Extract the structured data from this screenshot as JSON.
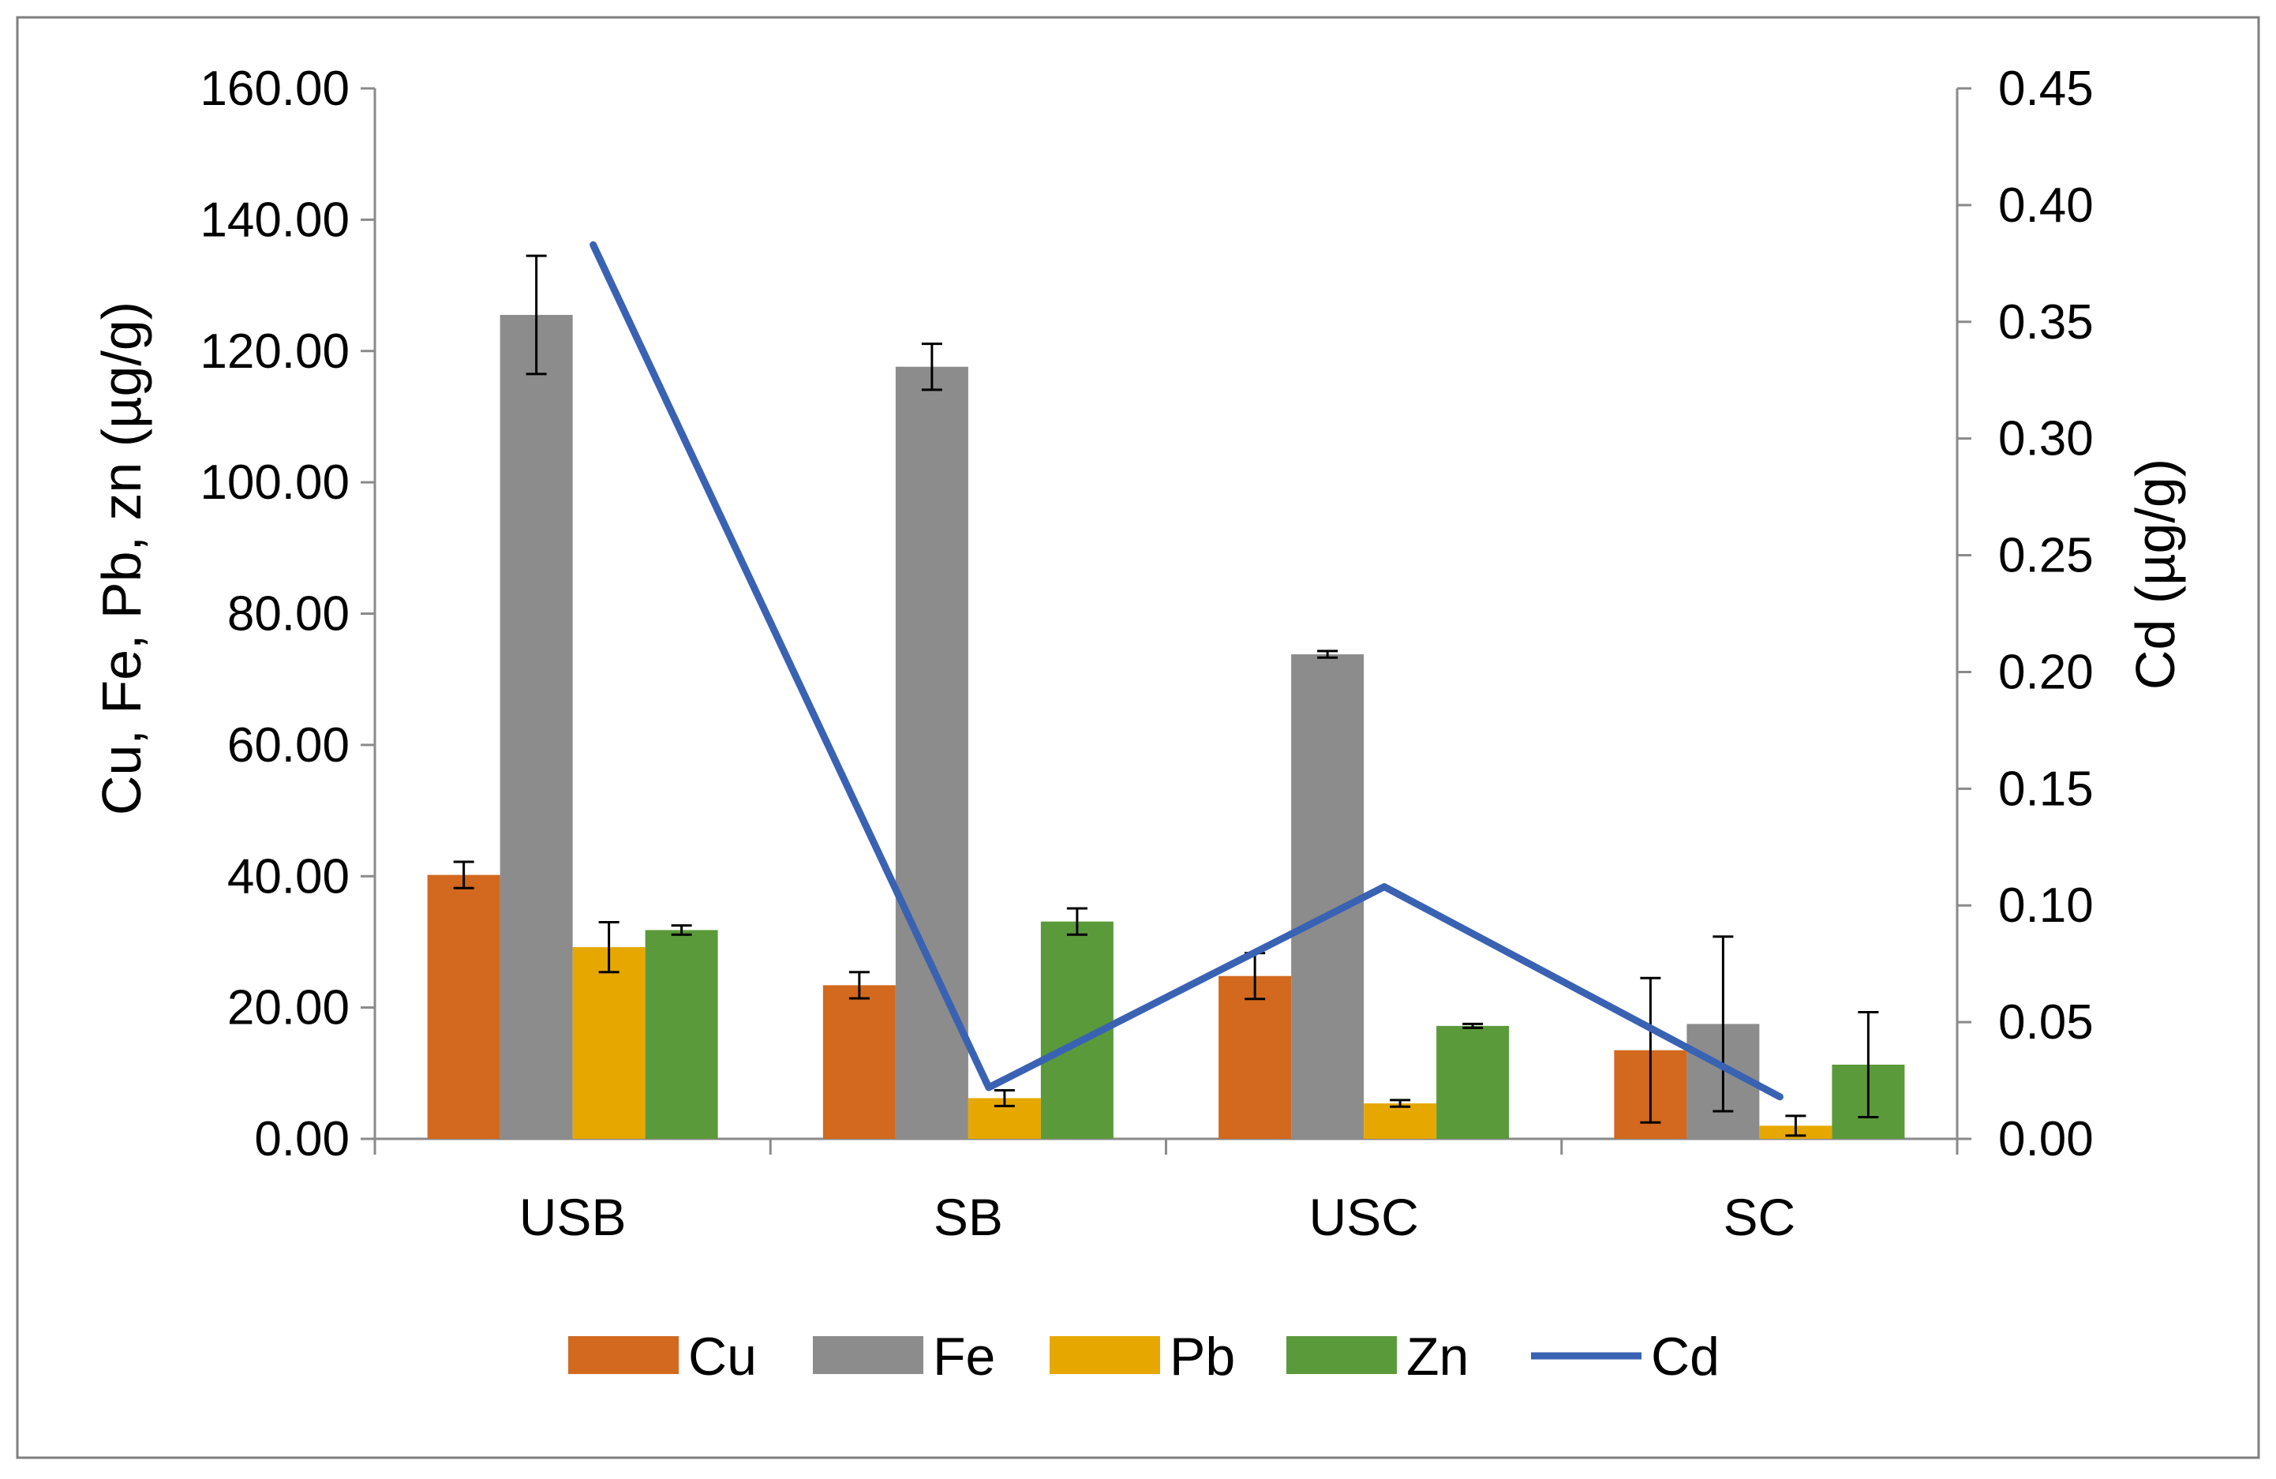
{
  "chart_data": {
    "type": "bar",
    "categories": [
      "USB",
      "SB",
      "USC",
      "SC"
    ],
    "series": [
      {
        "name": "Cu",
        "axis": "left",
        "kind": "bar",
        "color": "#d2691e",
        "values": [
          40.2,
          23.4,
          24.8,
          13.5
        ],
        "errors": [
          2.0,
          2.0,
          3.5,
          11.0
        ]
      },
      {
        "name": "Fe",
        "axis": "left",
        "kind": "bar",
        "color": "#8c8c8c",
        "values": [
          125.5,
          117.6,
          73.8,
          17.5
        ],
        "errors": [
          9.0,
          3.5,
          0.5,
          13.3
        ]
      },
      {
        "name": "Pb",
        "axis": "left",
        "kind": "bar",
        "color": "#e6a800",
        "values": [
          29.2,
          6.2,
          5.4,
          2.0
        ],
        "errors": [
          3.8,
          1.2,
          0.5,
          1.5
        ]
      },
      {
        "name": "Zn",
        "axis": "left",
        "kind": "bar",
        "color": "#5b9a3a",
        "values": [
          31.8,
          33.1,
          17.2,
          11.3
        ],
        "errors": [
          0.7,
          2.0,
          0.3,
          8.0
        ]
      },
      {
        "name": "Cd",
        "axis": "right",
        "kind": "line",
        "color": "#3a62b3",
        "values": [
          0.383,
          0.022,
          0.108,
          0.018
        ]
      }
    ],
    "ylabel_left": "Cu, Fe, Pb, zn (µg/g)",
    "ylabel_right": "Cd (µg/g)",
    "ylim_left": [
      0,
      160
    ],
    "ylim_right": [
      0,
      0.45
    ],
    "yticks_left": [
      "0.00",
      "20.00",
      "40.00",
      "60.00",
      "80.00",
      "100.00",
      "120.00",
      "140.00",
      "160.00"
    ],
    "yticks_right": [
      "0.00",
      "0.05",
      "0.10",
      "0.15",
      "0.20",
      "0.25",
      "0.30",
      "0.35",
      "0.40",
      "0.45"
    ],
    "legend": {
      "position": "bottom",
      "entries": [
        "Cu",
        "Fe",
        "Pb",
        "Zn",
        "Cd"
      ]
    },
    "grid": false
  }
}
